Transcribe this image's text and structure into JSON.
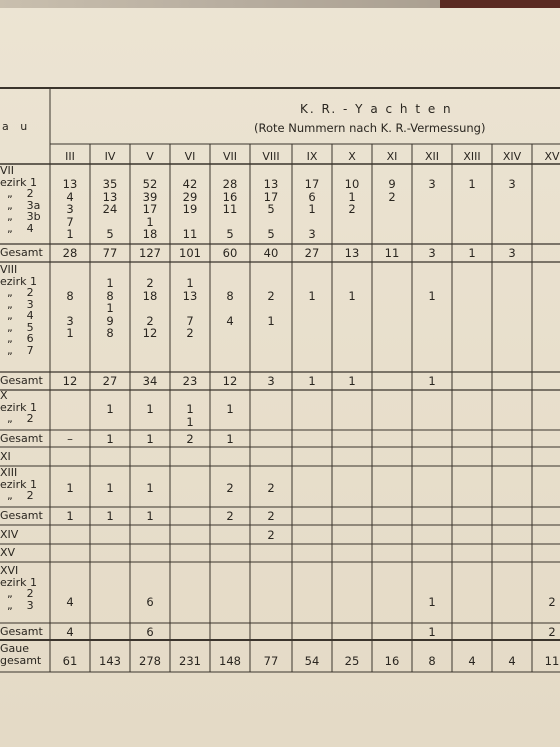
{
  "header": {
    "gau_label": "a u",
    "title": "K. R. - Y a c h t e n",
    "subtitle": "(Rote Nummern nach K. R.-Vermessung)"
  },
  "columns": [
    "III",
    "IV",
    "V",
    "VI",
    "VII",
    "VIII",
    "IX",
    "X",
    "XI",
    "XII",
    "XIII",
    "XIV",
    "XV"
  ],
  "groups": {
    "g7": {
      "labels": "VII\nezirk 1\n  „    2\n  „    3a\n  „    3b\n  „    4",
      "values": [
        "13\n4\n3\n7\n1",
        "35\n13\n24\n\n5",
        "52\n39\n17\n1\n18",
        "42\n29\n19\n\n11",
        "28\n16\n11\n\n5",
        "13\n17\n5\n\n5",
        "17\n6\n1\n\n3",
        "10\n1\n2",
        "9\n2",
        "3",
        "1",
        "3",
        ""
      ],
      "total_label": "Gesamt",
      "totals": [
        "28",
        "77",
        "127",
        "101",
        "60",
        "40",
        "27",
        "13",
        "11",
        "3",
        "1",
        "3",
        ""
      ]
    },
    "g8": {
      "labels": "VIII\nezirk 1\n  „    2\n  „    3\n  „    4\n  „    5\n  „    6\n  „    7",
      "values": [
        "\n8\n\n3\n1",
        "1\n8\n1\n9\n8",
        "2\n18\n\n2\n12",
        "1\n13\n\n7\n2",
        "\n8\n\n4",
        "\n2\n\n1",
        "\n1",
        "\n1",
        "",
        "\n1",
        "",
        "",
        ""
      ],
      "total_label": "Gesamt",
      "totals": [
        "12",
        "27",
        "34",
        "23",
        "12",
        "3",
        "1",
        "1",
        "",
        "1",
        "",
        "",
        ""
      ]
    },
    "g10": {
      "labels": "X\nezirk 1\n  „    2",
      "values": [
        "",
        "1",
        "1",
        "1\n1",
        "1",
        "",
        "",
        "",
        "",
        "",
        "",
        "",
        ""
      ],
      "total_label": "Gesamt",
      "totals": [
        "–",
        "1",
        "1",
        "2",
        "1",
        "",
        "",
        "",
        "",
        "",
        "",
        "",
        ""
      ]
    },
    "g11": {
      "label": "XI"
    },
    "g13": {
      "labels": "XIII\nezirk 1\n  „    2",
      "values": [
        "1",
        "1",
        "1",
        "",
        "2",
        "2",
        "",
        "",
        "",
        "",
        "",
        "",
        ""
      ],
      "total_label": "Gesamt",
      "totals": [
        "1",
        "1",
        "1",
        "",
        "2",
        "2",
        "",
        "",
        "",
        "",
        "",
        "",
        ""
      ]
    },
    "g14": {
      "label": "XIV",
      "values": [
        "",
        "",
        "",
        "",
        "",
        "2",
        "",
        "",
        "",
        "",
        "",
        "",
        ""
      ]
    },
    "g15": {
      "label": "XV"
    },
    "g16": {
      "labels": "XVI\nezirk 1\n  „    2\n  „    3",
      "values": [
        "4",
        "",
        "6",
        "",
        "",
        "",
        "",
        "",
        "",
        "1",
        "",
        "",
        "2"
      ],
      "total_label": "Gesamt",
      "totals": [
        "4",
        "",
        "6",
        "",
        "",
        "",
        "",
        "",
        "",
        "1",
        "",
        "",
        "2"
      ]
    },
    "grand": {
      "label": "Gaue\ngesamt",
      "totals": [
        "61",
        "143",
        "278",
        "231",
        "148",
        "77",
        "54",
        "25",
        "16",
        "8",
        "4",
        "4",
        "11"
      ]
    }
  }
}
